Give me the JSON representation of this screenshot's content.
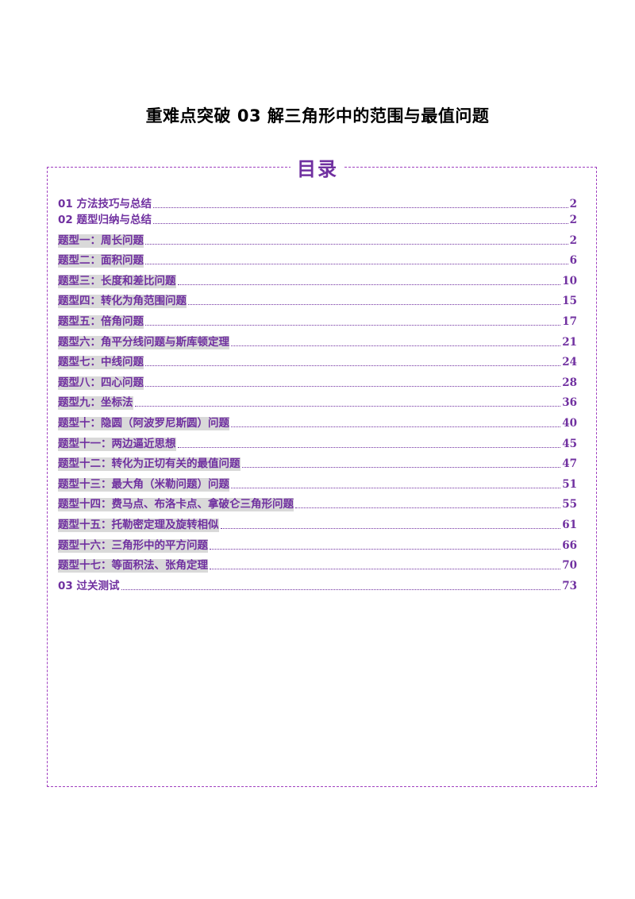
{
  "document": {
    "title": "重难点突破 03  解三角形中的范围与最值问题"
  },
  "toc": {
    "heading": "目录",
    "entries": [
      {
        "label": "01 方法技巧与总结",
        "page": "2",
        "shaded": false
      },
      {
        "label": "02 题型归纳与总结",
        "page": "2",
        "shaded": false
      },
      {
        "label": "题型一：周长问题",
        "page": "2",
        "shaded": true
      },
      {
        "label": "题型二：面积问题",
        "page": "6",
        "shaded": true
      },
      {
        "label": "题型三：长度和差比问题",
        "page": "10",
        "shaded": true
      },
      {
        "label": "题型四：转化为角范围问题",
        "page": "15",
        "shaded": true
      },
      {
        "label": "题型五：倍角问题",
        "page": "17",
        "shaded": true
      },
      {
        "label": "题型六：角平分线问题与斯库顿定理",
        "page": "21",
        "shaded": true
      },
      {
        "label": "题型七：中线问题",
        "page": "24",
        "shaded": true
      },
      {
        "label": "题型八：四心问题",
        "page": "28",
        "shaded": true
      },
      {
        "label": "题型九：坐标法",
        "page": "36",
        "shaded": true
      },
      {
        "label": "题型十：隐圆（阿波罗尼斯圆）问题",
        "page": "40",
        "shaded": true
      },
      {
        "label": "题型十一：两边逼近思想",
        "page": "45",
        "shaded": true
      },
      {
        "label": "题型十二：转化为正切有关的最值问题",
        "page": "47",
        "shaded": true
      },
      {
        "label": "题型十三：最大角（米勒问题）问题",
        "page": "51",
        "shaded": true
      },
      {
        "label": "题型十四：费马点、布洛卡点、拿破仑三角形问题",
        "page": "55",
        "shaded": true
      },
      {
        "label": "题型十五：托勒密定理及旋转相似",
        "page": "61",
        "shaded": true
      },
      {
        "label": "题型十六：三角形中的平方问题",
        "page": "66",
        "shaded": true
      },
      {
        "label": "题型十七：等面积法、张角定理",
        "page": "70",
        "shaded": true
      },
      {
        "label": "03 过关测试",
        "page": "73",
        "shaded": false
      }
    ]
  },
  "colors": {
    "accent": "#7030a0",
    "shade": "#d9d9d9",
    "border": "#a040c0"
  }
}
